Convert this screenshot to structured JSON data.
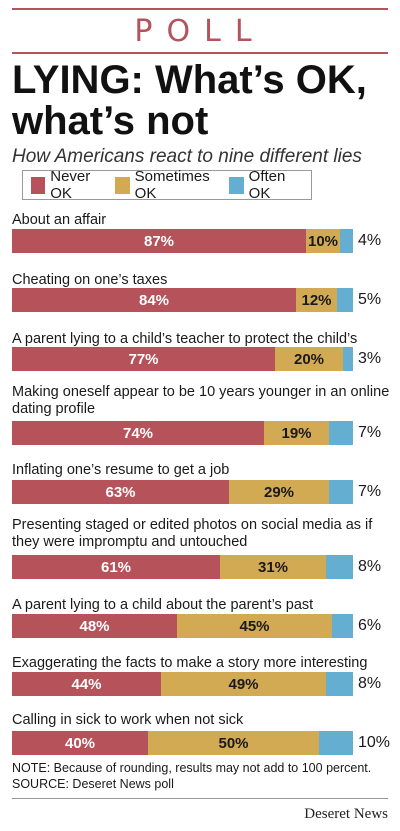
{
  "header": {
    "kicker": "POLL",
    "title_line1": "LYING: What’s OK,",
    "title_line2": "what’s not",
    "subtitle": "How Americans react to nine different lies"
  },
  "legend": [
    {
      "label": "Never OK",
      "color": "#b5525a"
    },
    {
      "label": "Sometimes OK",
      "color": "#d3aa54"
    },
    {
      "label": "Often OK",
      "color": "#63aed1"
    }
  ],
  "chart_data": {
    "type": "bar",
    "stacked": true,
    "orientation": "horizontal",
    "categories": [
      "About an affair",
      "Cheating on one’s taxes",
      "A parent lying to a child’s teacher to protect the child’s grades",
      "Making oneself appear to be 10 years younger in an online dating profile",
      "Inflating one’s resume to get a job",
      "Presenting staged or edited photos on social media as if they were impromptu and untouched",
      "A parent lying to a child about the parent’s past misbehavior",
      "Exaggerating the facts to make a story more interesting",
      "Calling in sick to work when not sick"
    ],
    "series": [
      {
        "name": "Never OK",
        "color": "#b5525a",
        "values": [
          87,
          84,
          77,
          74,
          63,
          61,
          48,
          44,
          40
        ]
      },
      {
        "name": "Sometimes OK",
        "color": "#d3aa54",
        "values": [
          10,
          12,
          20,
          19,
          29,
          31,
          45,
          49,
          50
        ]
      },
      {
        "name": "Often OK",
        "color": "#63aed1",
        "values": [
          4,
          5,
          3,
          7,
          7,
          8,
          6,
          8,
          10
        ]
      }
    ],
    "value_suffix": "%",
    "legend_position": "top-left"
  },
  "footer": {
    "note": "NOTE: Because of rounding, results may not add to 100 percent.",
    "source": "SOURCE: Deseret News poll",
    "brand": "Deseret News"
  }
}
